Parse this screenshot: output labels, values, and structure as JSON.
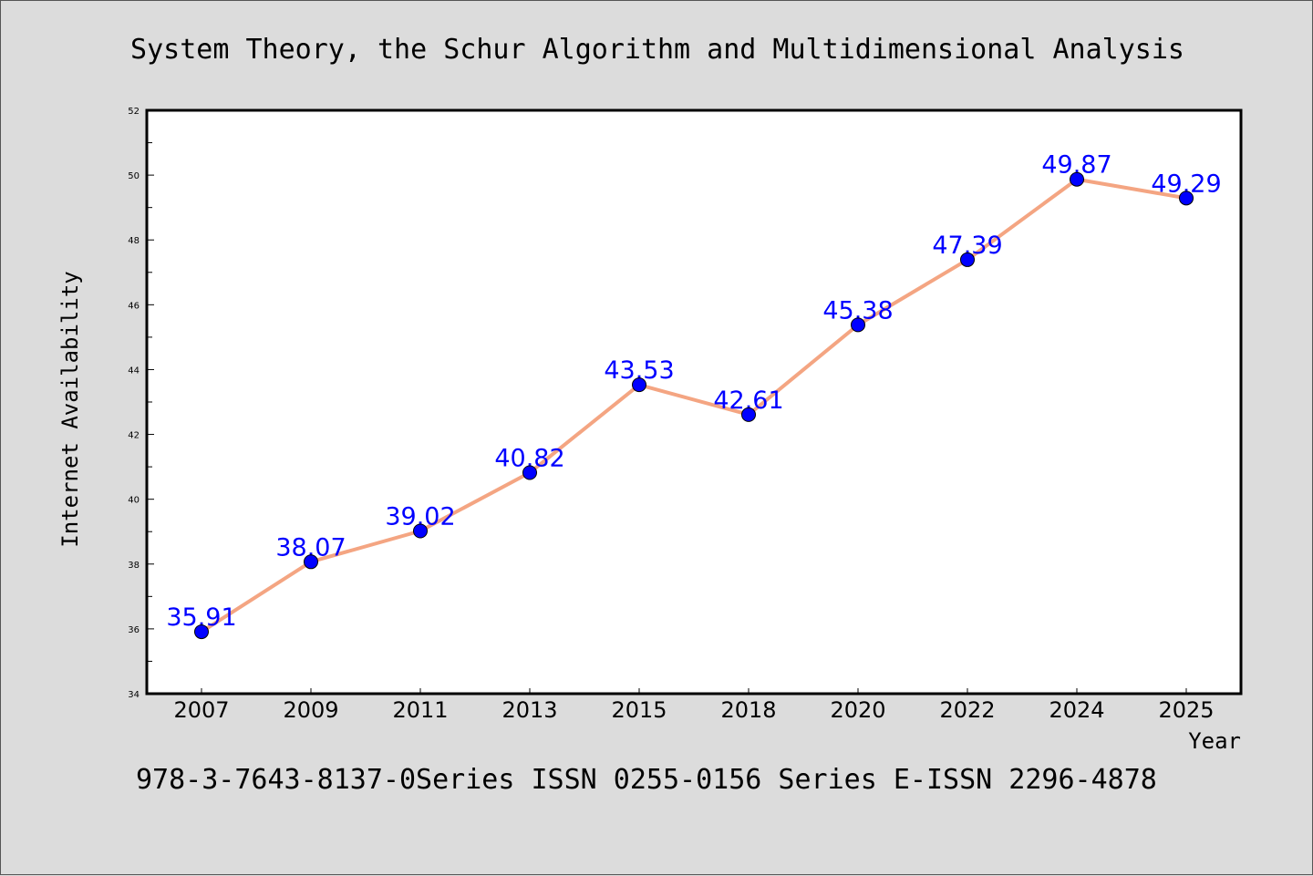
{
  "chart_data": {
    "type": "line",
    "title": "System Theory, the Schur Algorithm and Multidimensional Analysis",
    "xlabel": "Year",
    "ylabel": "Internet Availability",
    "footer": "978-3-7643-8137-0Series ISSN 0255-0156 Series E-ISSN 2296-4878",
    "categories": [
      "2007",
      "2009",
      "2011",
      "2013",
      "2015",
      "2018",
      "2020",
      "2022",
      "2024",
      "2025"
    ],
    "series": [
      {
        "values": [
          35.91,
          38.07,
          39.02,
          40.82,
          43.53,
          42.61,
          45.38,
          47.39,
          49.87,
          49.29
        ],
        "labels": [
          "35.91",
          "38.07",
          "39.02",
          "40.82",
          "43.53",
          "42.61",
          "45.38",
          "47.39",
          "49.87",
          "49.29"
        ]
      }
    ],
    "ylim": [
      34,
      52
    ],
    "yticks": [
      "34",
      "36",
      "38",
      "40",
      "42",
      "44",
      "46",
      "48",
      "50",
      "52"
    ],
    "grid": false,
    "legend": "none",
    "colors": {
      "line": "#f4a582",
      "marker": "#0000ff",
      "label": "#0000ff",
      "plot_background": "#ffffff",
      "figure_background": "#dcdcdc"
    }
  }
}
